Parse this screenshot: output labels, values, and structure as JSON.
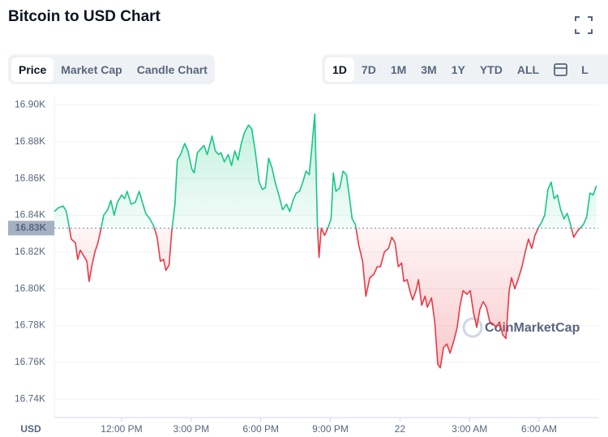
{
  "header": {
    "title": "Bitcoin to USD Chart"
  },
  "tabs": [
    "Price",
    "Market Cap",
    "Candle Chart"
  ],
  "ranges": [
    "1D",
    "7D",
    "1M",
    "3M",
    "1Y",
    "YTD",
    "ALL",
    "L"
  ],
  "chart_data": {
    "type": "line",
    "watermark": "CoinMarketCap",
    "y_unit": "USD",
    "reference_line": {
      "value": 16.833,
      "label": "16.83K"
    },
    "above_color": "#16c784",
    "below_color": "#ea3943",
    "grid": true,
    "xlim": [
      9.1,
      32.55
    ],
    "ylim": [
      16.73,
      16.905
    ],
    "yticks": [
      {
        "value": 16.74,
        "label": "16.74K"
      },
      {
        "value": 16.76,
        "label": "16.76K"
      },
      {
        "value": 16.78,
        "label": "16.78K"
      },
      {
        "value": 16.8,
        "label": "16.80K"
      },
      {
        "value": 16.82,
        "label": "16.82K"
      },
      {
        "value": 16.84,
        "label": "16.84K"
      },
      {
        "value": 16.86,
        "label": "16.86K"
      },
      {
        "value": 16.88,
        "label": "16.88K"
      },
      {
        "value": 16.9,
        "label": "16.90K"
      }
    ],
    "xticks": [
      {
        "value": 12,
        "label": "12:00 PM"
      },
      {
        "value": 15,
        "label": "3:00 PM"
      },
      {
        "value": 18,
        "label": "6:00 PM"
      },
      {
        "value": 21,
        "label": "9:00 PM"
      },
      {
        "value": 24,
        "label": "22"
      },
      {
        "value": 27,
        "label": "3:00 AM"
      },
      {
        "value": 30,
        "label": "6:00 AM"
      }
    ],
    "x": [
      9.1,
      9.27,
      9.48,
      9.62,
      9.83,
      10.01,
      10.11,
      10.22,
      10.36,
      10.5,
      10.6,
      10.71,
      10.85,
      10.98,
      11.12,
      11.23,
      11.4,
      11.54,
      11.68,
      11.82,
      12.0,
      12.13,
      12.24,
      12.41,
      12.59,
      12.76,
      12.9,
      13.04,
      13.22,
      13.39,
      13.53,
      13.67,
      13.81,
      13.91,
      14.05,
      14.16,
      14.3,
      14.4,
      14.54,
      14.72,
      14.86,
      15.03,
      15.13,
      15.27,
      15.41,
      15.55,
      15.69,
      15.9,
      16.04,
      16.18,
      16.29,
      16.43,
      16.6,
      16.74,
      16.88,
      17.02,
      17.16,
      17.3,
      17.47,
      17.61,
      17.75,
      17.93,
      18.07,
      18.2,
      18.34,
      18.48,
      18.62,
      18.8,
      18.94,
      19.11,
      19.25,
      19.39,
      19.53,
      19.67,
      19.81,
      19.95,
      20.09,
      20.19,
      20.33,
      20.44,
      20.51,
      20.61,
      20.75,
      20.89,
      21.03,
      21.13,
      21.24,
      21.41,
      21.55,
      21.69,
      21.83,
      21.94,
      22.08,
      22.22,
      22.39,
      22.53,
      22.7,
      22.88,
      23.02,
      23.16,
      23.33,
      23.51,
      23.65,
      23.79,
      23.93,
      24.07,
      24.17,
      24.31,
      24.45,
      24.55,
      24.69,
      24.8,
      24.94,
      25.08,
      25.18,
      25.36,
      25.5,
      25.63,
      25.74,
      25.88,
      26.02,
      26.16,
      26.33,
      26.47,
      26.58,
      26.72,
      26.89,
      27.03,
      27.17,
      27.31,
      27.45,
      27.59,
      27.73,
      27.87,
      28.01,
      28.15,
      28.29,
      28.43,
      28.57,
      28.71,
      28.81,
      28.95,
      29.09,
      29.26,
      29.4,
      29.54,
      29.68,
      29.82,
      29.96,
      30.1,
      30.24,
      30.38,
      30.52,
      30.65,
      30.79,
      30.93,
      31.07,
      31.21,
      31.35,
      31.49,
      31.63,
      31.77,
      31.91,
      32.05,
      32.19,
      32.33,
      32.47
    ],
    "values": [
      16.842,
      16.844,
      16.845,
      16.842,
      16.827,
      16.825,
      16.816,
      16.821,
      16.818,
      16.815,
      16.804,
      16.812,
      16.82,
      16.825,
      16.833,
      16.84,
      16.843,
      16.848,
      16.84,
      16.847,
      16.851,
      16.849,
      16.853,
      16.846,
      16.847,
      16.853,
      16.847,
      16.841,
      16.838,
      16.834,
      16.828,
      16.815,
      16.816,
      16.81,
      16.813,
      16.831,
      16.846,
      16.87,
      16.873,
      16.879,
      16.875,
      16.865,
      16.863,
      16.874,
      16.876,
      16.878,
      16.873,
      16.883,
      16.875,
      16.873,
      16.874,
      16.869,
      16.873,
      16.867,
      16.875,
      16.87,
      16.879,
      16.885,
      16.889,
      16.887,
      16.876,
      16.858,
      16.854,
      16.855,
      16.871,
      16.866,
      16.858,
      16.85,
      16.843,
      16.846,
      16.842,
      16.848,
      16.852,
      16.853,
      16.858,
      16.864,
      16.862,
      16.875,
      16.895,
      16.835,
      16.817,
      16.833,
      16.829,
      16.833,
      16.838,
      16.863,
      16.853,
      16.855,
      16.864,
      16.862,
      16.849,
      16.838,
      16.835,
      16.824,
      16.815,
      16.796,
      16.806,
      16.808,
      16.812,
      16.812,
      16.82,
      16.822,
      16.828,
      16.825,
      16.812,
      16.814,
      16.804,
      16.805,
      16.798,
      16.794,
      16.799,
      16.805,
      16.791,
      16.796,
      16.79,
      16.795,
      16.782,
      16.759,
      16.757,
      16.768,
      16.77,
      16.765,
      16.772,
      16.779,
      16.79,
      16.799,
      16.797,
      16.799,
      16.787,
      16.779,
      16.789,
      16.793,
      16.79,
      16.782,
      16.781,
      16.779,
      16.782,
      16.775,
      16.773,
      16.799,
      16.806,
      16.8,
      16.805,
      16.812,
      16.82,
      16.827,
      16.822,
      16.829,
      16.833,
      16.836,
      16.84,
      16.854,
      16.858,
      16.849,
      16.851,
      16.843,
      16.838,
      16.841,
      16.835,
      16.828,
      16.831,
      16.833,
      16.835,
      16.839,
      16.852,
      16.851,
      16.856
    ]
  }
}
